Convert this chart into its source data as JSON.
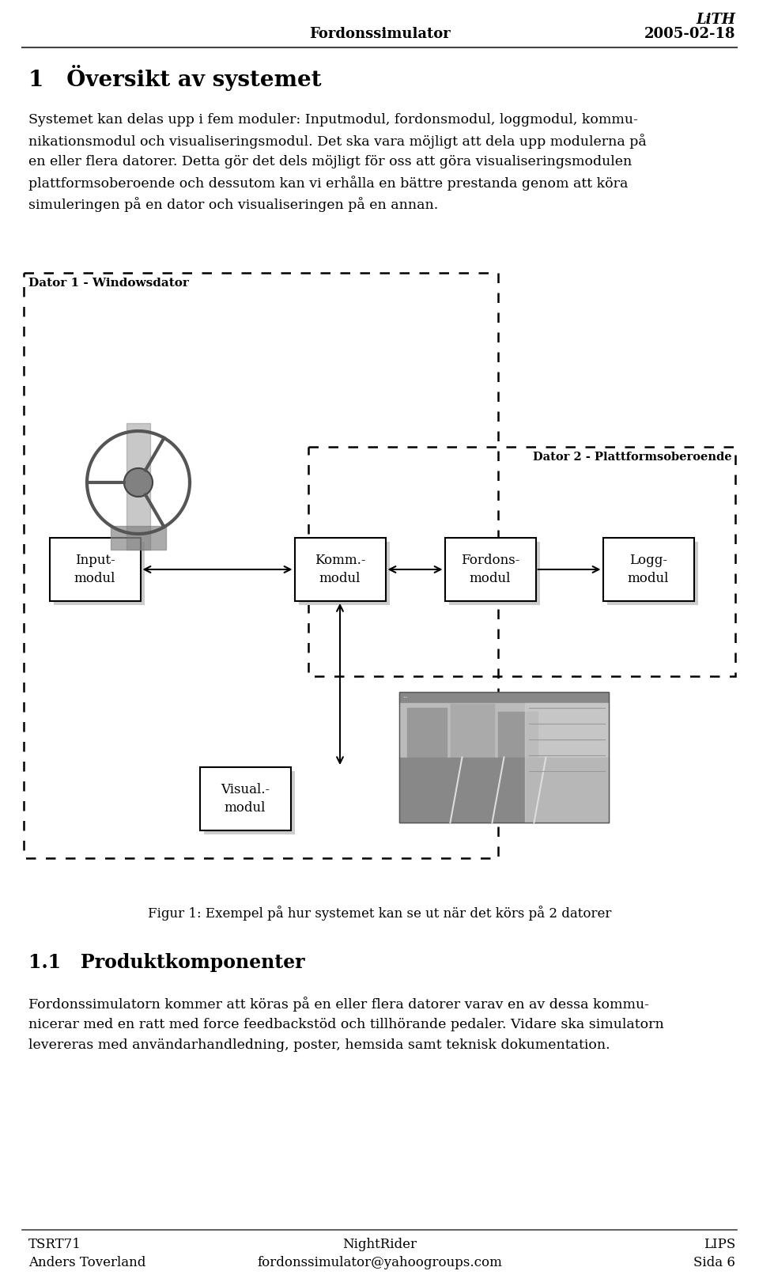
{
  "header_left": "Fordonssimulator",
  "header_right_top": "LiTH",
  "header_right_bottom": "2005-02-18",
  "section_title": "1   Översikt av systemet",
  "paragraph1_lines": [
    "Systemet kan delas upp i fem moduler: Inputmodul, fordonsmodul, loggmodul, kommu-",
    "nikationsmodul och visualiseringsmodul. Det ska vara möjligt att dela upp modulerna på",
    "en eller flera datorer. Detta gör det dels möjligt för oss att göra visualiseringsmodulen",
    "plattformsoberoende och dessutom kan vi erhålla en bättre prestanda genom att köra",
    "simuleringen på en dator och visualiseringen på en annan."
  ],
  "box1_label": "Dator 1 - Windowsdator",
  "box2_label": "Dator 2 - Plattformsoberoende",
  "module_input": "Input-\nmodul",
  "module_komm": "Komm.-\nmodul",
  "module_fordons": "Fordons-\nmodul",
  "module_logg": "Logg-\nmodul",
  "module_visual": "Visual.-\nmodul",
  "figure_caption": "Figur 1: Exempel på hur systemet kan se ut när det körs på 2 datorer",
  "section2_title": "1.1   Produktkomponenter",
  "paragraph2_lines": [
    "Fordonssimulatorn kommer att köras på en eller flera datorer varav en av dessa kommu-",
    "nicerar med en ratt med force feedbackstöd och tillhörande pedaler. Vidare ska simulatorn",
    "levereras med användarhandledning, poster, hemsida samt teknisk dokumentation."
  ],
  "footer_left1": "TSRT71",
  "footer_center1": "NightRider",
  "footer_right1": "LIPS",
  "footer_left2": "Anders Toverland",
  "footer_center2": "fordonssimulator@yahoogroups.com",
  "footer_right2": "Sida 6",
  "bg_color": "#ffffff",
  "text_color": "#000000"
}
